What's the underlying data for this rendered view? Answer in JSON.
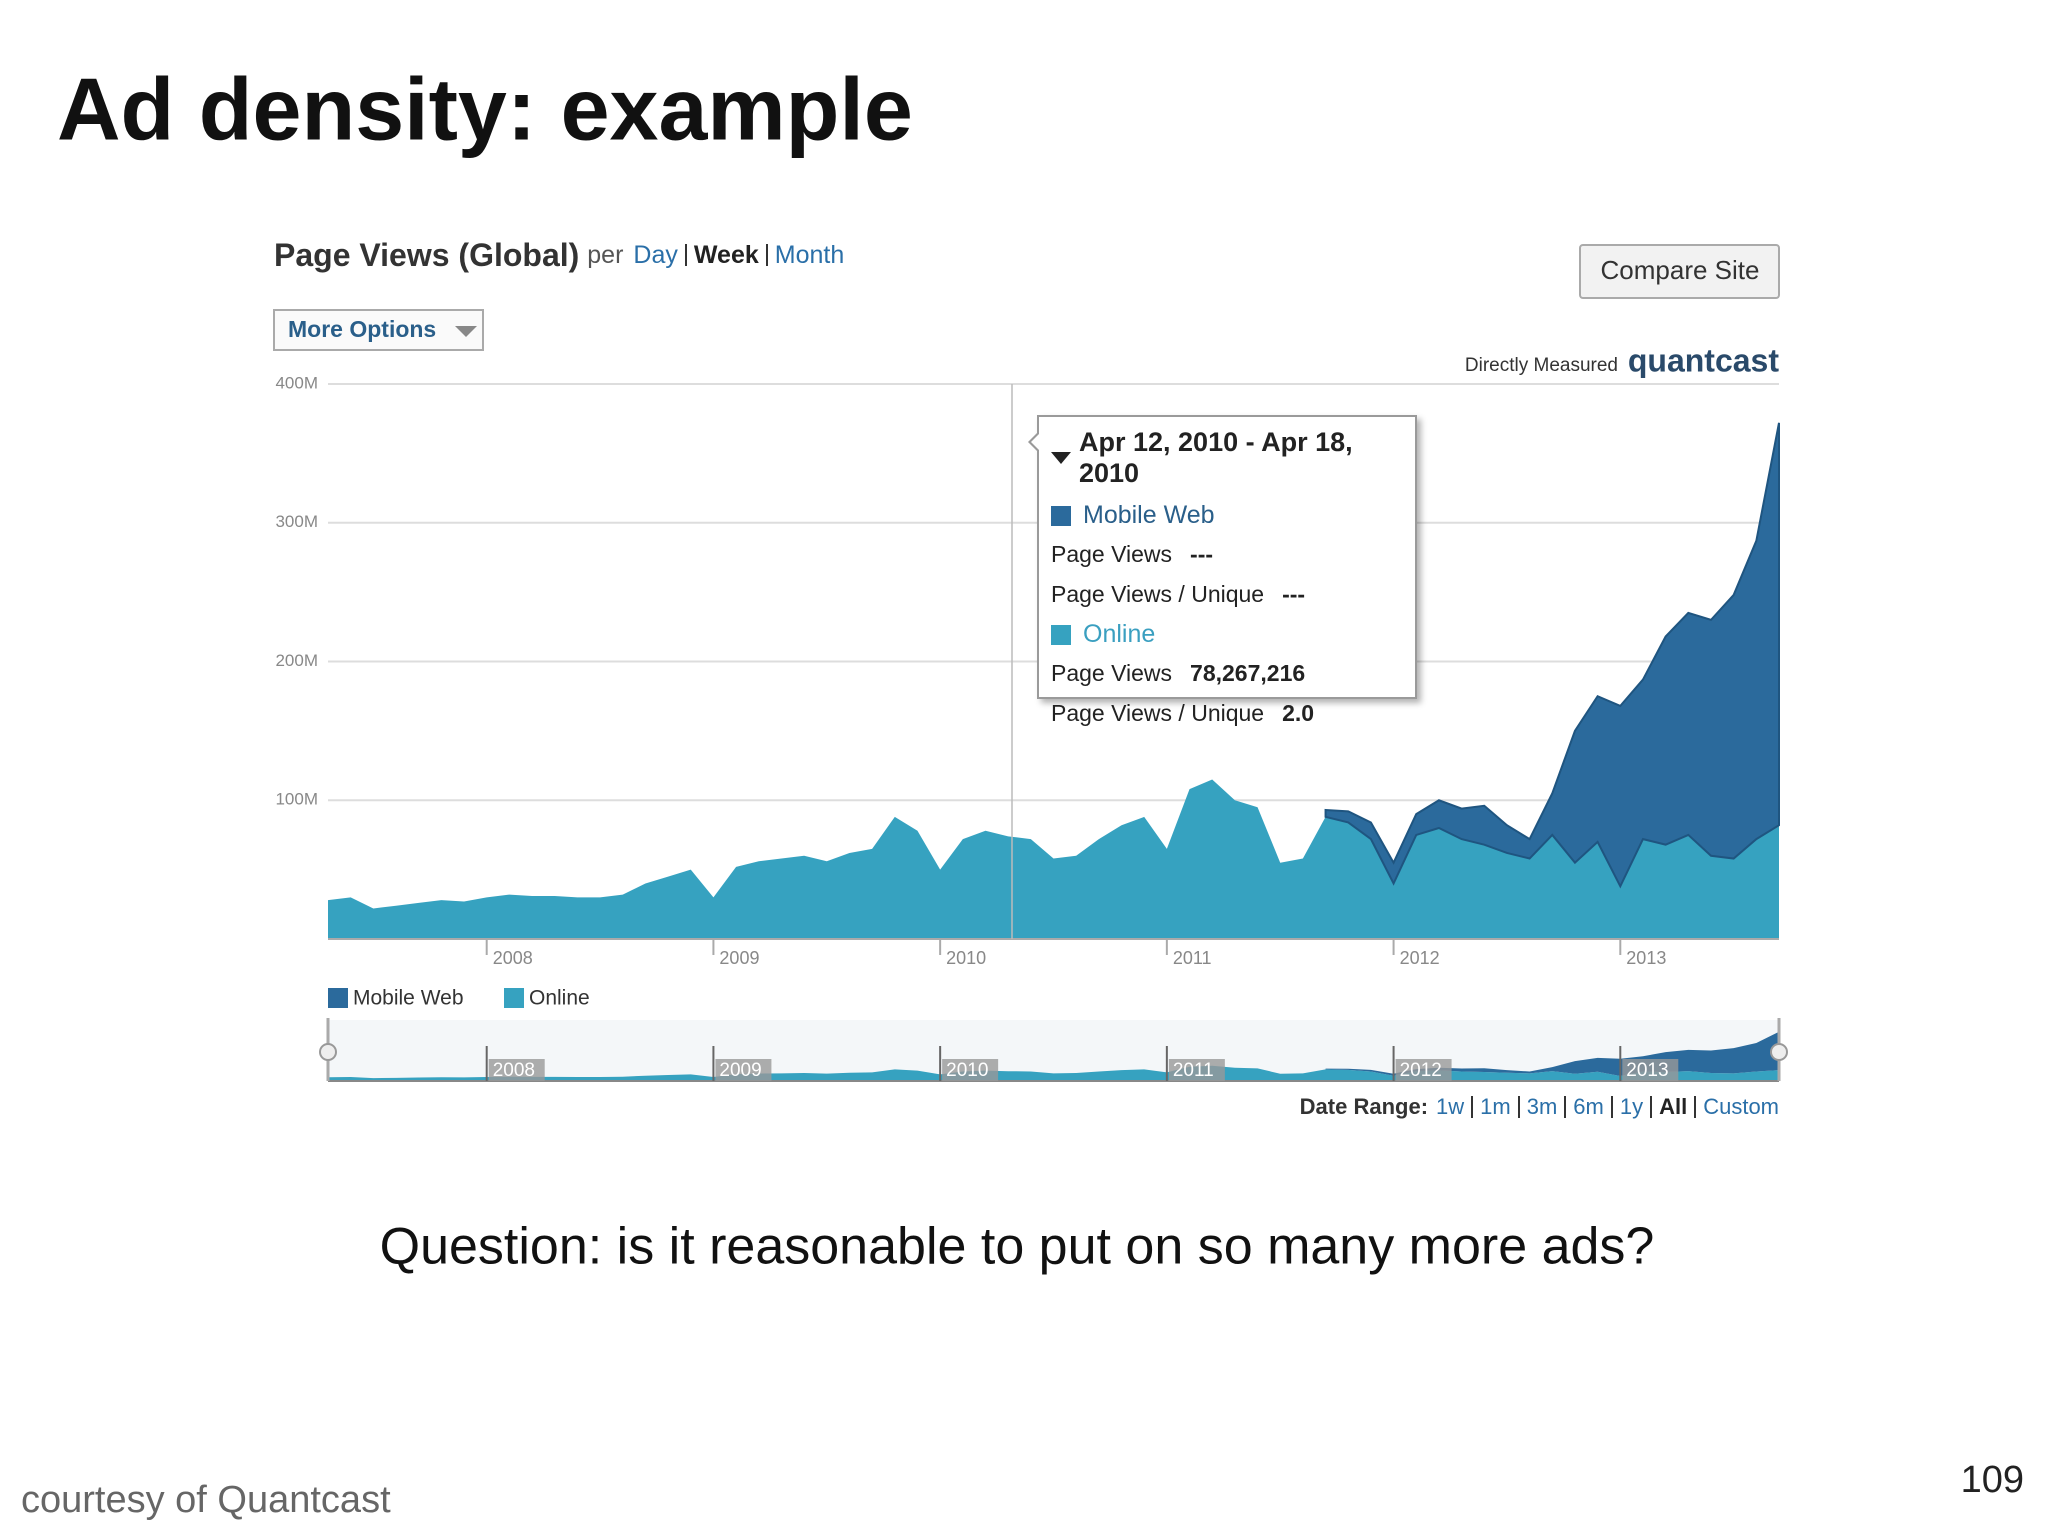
{
  "slide": {
    "title": "Ad density: example",
    "question": "Question: is it reasonable to put on so many more ads?",
    "credit": "courtesy of Quantcast",
    "page_number": "109"
  },
  "widget": {
    "heading": "Page Views (Global)",
    "per": "per",
    "granularity": [
      "Day",
      "Week",
      "Month"
    ],
    "more_options": "More Options",
    "compare": "Compare Site",
    "measured": "Directly Measured",
    "brand": "quantcast",
    "date_range_label": "Date Range:",
    "date_ranges": [
      "1w",
      "1m",
      "3m",
      "6m",
      "1y",
      "All",
      "Custom"
    ],
    "tooltip": {
      "title": "Apr 12, 2010 - Apr 18, 2010",
      "groups": [
        {
          "name": "Mobile Web",
          "rows": [
            [
              "Page Views",
              "---"
            ],
            [
              "Page Views / Unique",
              "---"
            ]
          ]
        },
        {
          "name": "Online",
          "rows": [
            [
              "Page Views",
              "78,267,216"
            ],
            [
              "Page Views / Unique",
              "2.0"
            ]
          ]
        }
      ]
    }
  },
  "chart_data": {
    "type": "stacked-area",
    "x": [
      2007.3,
      2007.4,
      2007.5,
      2007.6,
      2007.7,
      2007.8,
      2007.9,
      2008.0,
      2008.1,
      2008.2,
      2008.3,
      2008.4,
      2008.5,
      2008.6,
      2008.7,
      2008.8,
      2008.9,
      2009.0,
      2009.1,
      2009.2,
      2009.3,
      2009.4,
      2009.5,
      2009.6,
      2009.7,
      2009.8,
      2009.9,
      2010.0,
      2010.1,
      2010.2,
      2010.3,
      2010.4,
      2010.5,
      2010.6,
      2010.7,
      2010.8,
      2010.9,
      2011.0,
      2011.1,
      2011.2,
      2011.3,
      2011.4,
      2011.5,
      2011.6,
      2011.7,
      2011.8,
      2011.9,
      2012.0,
      2012.1,
      2012.2,
      2012.3,
      2012.4,
      2012.5,
      2012.6,
      2012.7,
      2012.8,
      2012.9,
      2013.0,
      2013.1,
      2013.2,
      2013.3,
      2013.4,
      2013.5,
      2013.6,
      2013.7
    ],
    "series": [
      {
        "name": "Mobile Web",
        "color": "#2b6a9c",
        "values": [
          null,
          null,
          null,
          null,
          null,
          null,
          null,
          null,
          null,
          null,
          null,
          null,
          null,
          null,
          null,
          null,
          null,
          null,
          null,
          null,
          null,
          null,
          null,
          null,
          null,
          null,
          null,
          null,
          null,
          null,
          null,
          null,
          null,
          null,
          null,
          null,
          null,
          null,
          null,
          null,
          null,
          null,
          null,
          null,
          5,
          8,
          12,
          15,
          15,
          20,
          22,
          28,
          20,
          14,
          30,
          95,
          105,
          130,
          115,
          150,
          160,
          170,
          190,
          215,
          290
        ]
      },
      {
        "name": "Online",
        "color": "#36a2c0",
        "values": [
          28,
          30,
          22,
          24,
          26,
          28,
          27,
          30,
          32,
          31,
          31,
          30,
          30,
          32,
          40,
          45,
          50,
          30,
          52,
          56,
          58,
          60,
          56,
          62,
          65,
          88,
          78,
          50,
          72,
          78,
          74,
          72,
          58,
          60,
          72,
          82,
          88,
          65,
          108,
          115,
          100,
          95,
          55,
          58,
          88,
          84,
          72,
          40,
          75,
          80,
          72,
          68,
          62,
          58,
          75,
          55,
          70,
          38,
          72,
          68,
          75,
          60,
          58,
          72,
          82
        ]
      }
    ],
    "xlim": [
      2007.3,
      2013.7
    ],
    "xticks": [
      2008,
      2009,
      2010,
      2011,
      2012,
      2013
    ],
    "ylim": [
      0,
      400
    ],
    "yticks": [
      {
        "value": 100,
        "label": "100M"
      },
      {
        "value": 200,
        "label": "200M"
      },
      {
        "value": 300,
        "label": "300M"
      },
      {
        "value": 400,
        "label": "400M"
      }
    ],
    "grid": true,
    "stacked": true
  }
}
